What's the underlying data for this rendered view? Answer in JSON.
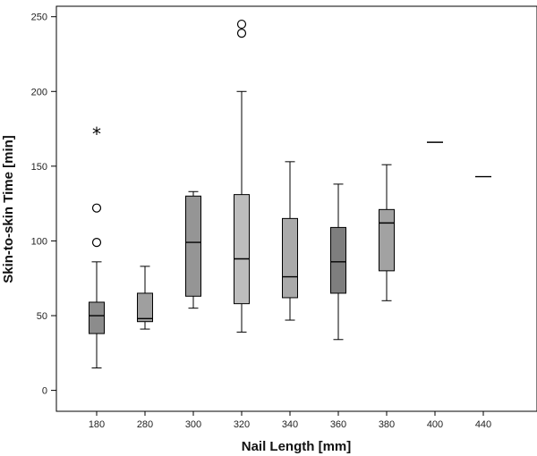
{
  "chart_data": {
    "type": "boxplot",
    "xlabel": "Nail Length [mm]",
    "ylabel": "Skin-to-skin Time [min]",
    "ylim": [
      -14,
      257
    ],
    "yticks": [
      0,
      50,
      100,
      150,
      200,
      250
    ],
    "categories": [
      "180",
      "280",
      "300",
      "320",
      "340",
      "360",
      "380",
      "400",
      "440"
    ],
    "boxes": [
      {
        "category": "180",
        "whisker_low": 15,
        "q1": 38,
        "median": 50,
        "q3": 59,
        "whisker_high": 86,
        "outliers": [
          99,
          122
        ],
        "extremes": [
          172
        ],
        "fill": "#8c8c8c"
      },
      {
        "category": "280",
        "whisker_low": 41,
        "q1": 46,
        "median": 48,
        "q3": 65,
        "whisker_high": 83,
        "outliers": [],
        "extremes": [],
        "fill": "#9f9f9f"
      },
      {
        "category": "300",
        "whisker_low": 55,
        "q1": 63,
        "median": 99,
        "q3": 130,
        "whisker_high": 133,
        "outliers": [],
        "extremes": [],
        "fill": "#959595"
      },
      {
        "category": "320",
        "whisker_low": 39,
        "q1": 58,
        "median": 88,
        "q3": 131,
        "whisker_high": 200,
        "outliers": [
          239,
          245
        ],
        "extremes": [],
        "fill": "#bdbdbd"
      },
      {
        "category": "340",
        "whisker_low": 47,
        "q1": 62,
        "median": 76,
        "q3": 115,
        "whisker_high": 153,
        "outliers": [],
        "extremes": [],
        "fill": "#aaaaaa"
      },
      {
        "category": "360",
        "whisker_low": 34,
        "q1": 65,
        "median": 86,
        "q3": 109,
        "whisker_high": 138,
        "outliers": [],
        "extremes": [],
        "fill": "#7e7e7e"
      },
      {
        "category": "380",
        "whisker_low": 60,
        "q1": 80,
        "median": 112,
        "q3": 121,
        "whisker_high": 151,
        "outliers": [],
        "extremes": [],
        "fill": "#a2a2a2"
      },
      {
        "category": "400",
        "median": 166
      },
      {
        "category": "440",
        "median": 143
      }
    ],
    "colors": {
      "axis": "#000000",
      "stroke": "#000000",
      "background": "#ffffff"
    }
  }
}
